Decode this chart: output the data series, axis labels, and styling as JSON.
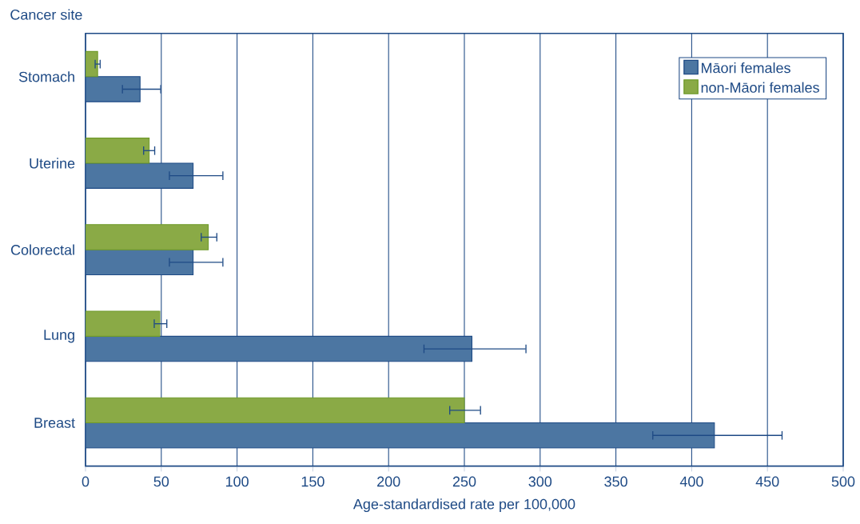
{
  "chart_data": {
    "type": "bar",
    "orientation": "horizontal",
    "xlabel": "Age-standardised rate per 100,000",
    "ylabel": "Cancer site",
    "categories": [
      "Stomach",
      "Uterine",
      "Colorectal",
      "Lung",
      "Breast"
    ],
    "series": [
      {
        "name": "Māori females",
        "color": "#4c76a2",
        "values": [
          36,
          71,
          71,
          255,
          415
        ],
        "errors": [
          [
            24,
            50
          ],
          [
            55,
            91
          ],
          [
            55,
            91
          ],
          [
            223,
            291
          ],
          [
            374,
            460
          ]
        ]
      },
      {
        "name": "non-Māori females",
        "color": "#8aaa46",
        "values": [
          8,
          42,
          81,
          49,
          250
        ],
        "errors": [
          [
            6,
            10
          ],
          [
            38,
            46
          ],
          [
            76,
            87
          ],
          [
            45,
            54
          ],
          [
            240,
            261
          ]
        ]
      }
    ],
    "xlim": [
      0,
      500
    ],
    "xticks": [
      0,
      50,
      100,
      150,
      200,
      250,
      300,
      350,
      400,
      450,
      500
    ],
    "grid": "x",
    "legend": "top right"
  }
}
